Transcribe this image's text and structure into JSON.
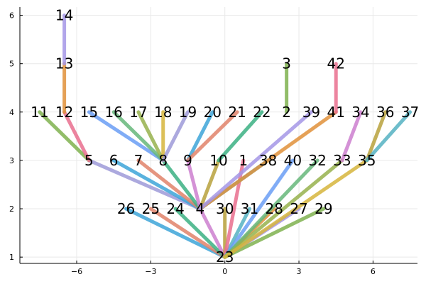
{
  "chart_data": {
    "type": "tree-graph",
    "xlim": [
      -8.3,
      7.8
    ],
    "ylim": [
      0.87,
      6.17
    ],
    "x_ticks": [
      -6,
      -3,
      0,
      3,
      6
    ],
    "x_tick_labels": [
      "−6",
      "−3",
      "0",
      "3",
      "6"
    ],
    "y_ticks": [
      1,
      2,
      3,
      4,
      5,
      6
    ],
    "y_tick_labels": [
      "1",
      "2",
      "3",
      "4",
      "5",
      "6"
    ],
    "grid": true,
    "legend": "none",
    "palette": [
      "#3da4d8",
      "#e0826a",
      "#3bb083",
      "#cc7fcf",
      "#b7a13c",
      "#55b2c2",
      "#e0913a",
      "#a496e6",
      "#7fb24f",
      "#e96f8e",
      "#6a9ef5",
      "#66b77a",
      "#97b24c",
      "#d6b53c",
      "#9e9ad8"
    ],
    "nodes": [
      {
        "id": "23",
        "x": 0.0,
        "y": 1
      },
      {
        "id": "26",
        "x": -4.0,
        "y": 2
      },
      {
        "id": "25",
        "x": -3.0,
        "y": 2
      },
      {
        "id": "24",
        "x": -2.0,
        "y": 2
      },
      {
        "id": "4",
        "x": -1.0,
        "y": 2
      },
      {
        "id": "30",
        "x": 0.0,
        "y": 2
      },
      {
        "id": "31",
        "x": 1.0,
        "y": 2
      },
      {
        "id": "28",
        "x": 2.0,
        "y": 2
      },
      {
        "id": "27",
        "x": 3.0,
        "y": 2
      },
      {
        "id": "29",
        "x": 4.0,
        "y": 2
      },
      {
        "id": "5",
        "x": -5.5,
        "y": 3
      },
      {
        "id": "6",
        "x": -4.5,
        "y": 3
      },
      {
        "id": "7",
        "x": -3.5,
        "y": 3
      },
      {
        "id": "8",
        "x": -2.5,
        "y": 3
      },
      {
        "id": "9",
        "x": -1.5,
        "y": 3
      },
      {
        "id": "10",
        "x": -0.25,
        "y": 3
      },
      {
        "id": "1",
        "x": 0.75,
        "y": 3
      },
      {
        "id": "38",
        "x": 1.75,
        "y": 3
      },
      {
        "id": "40",
        "x": 2.75,
        "y": 3
      },
      {
        "id": "32",
        "x": 3.75,
        "y": 3
      },
      {
        "id": "33",
        "x": 4.75,
        "y": 3
      },
      {
        "id": "35",
        "x": 5.75,
        "y": 3
      },
      {
        "id": "11",
        "x": -7.5,
        "y": 4
      },
      {
        "id": "12",
        "x": -6.5,
        "y": 4
      },
      {
        "id": "15",
        "x": -5.5,
        "y": 4
      },
      {
        "id": "16",
        "x": -4.5,
        "y": 4
      },
      {
        "id": "17",
        "x": -3.5,
        "y": 4
      },
      {
        "id": "18",
        "x": -2.5,
        "y": 4
      },
      {
        "id": "19",
        "x": -1.5,
        "y": 4
      },
      {
        "id": "20",
        "x": -0.5,
        "y": 4
      },
      {
        "id": "21",
        "x": 0.5,
        "y": 4
      },
      {
        "id": "22",
        "x": 1.5,
        "y": 4
      },
      {
        "id": "2",
        "x": 2.5,
        "y": 4
      },
      {
        "id": "39",
        "x": 3.5,
        "y": 4
      },
      {
        "id": "41",
        "x": 4.5,
        "y": 4
      },
      {
        "id": "34",
        "x": 5.5,
        "y": 4
      },
      {
        "id": "36",
        "x": 6.5,
        "y": 4
      },
      {
        "id": "37",
        "x": 7.5,
        "y": 4
      },
      {
        "id": "13",
        "x": -6.5,
        "y": 5
      },
      {
        "id": "3",
        "x": 2.5,
        "y": 5
      },
      {
        "id": "42",
        "x": 4.5,
        "y": 5
      },
      {
        "id": "14",
        "x": -6.5,
        "y": 6
      }
    ],
    "edges": [
      {
        "from": "23",
        "to": "26"
      },
      {
        "from": "23",
        "to": "25"
      },
      {
        "from": "23",
        "to": "24"
      },
      {
        "from": "23",
        "to": "4"
      },
      {
        "from": "23",
        "to": "30"
      },
      {
        "from": "23",
        "to": "31"
      },
      {
        "from": "23",
        "to": "28"
      },
      {
        "from": "23",
        "to": "27"
      },
      {
        "from": "23",
        "to": "29"
      },
      {
        "from": "23",
        "to": "1"
      },
      {
        "from": "23",
        "to": "40"
      },
      {
        "from": "23",
        "to": "32"
      },
      {
        "from": "23",
        "to": "33"
      },
      {
        "from": "23",
        "to": "35"
      },
      {
        "from": "4",
        "to": "5"
      },
      {
        "from": "4",
        "to": "6"
      },
      {
        "from": "4",
        "to": "7"
      },
      {
        "from": "4",
        "to": "8"
      },
      {
        "from": "4",
        "to": "9"
      },
      {
        "from": "4",
        "to": "10"
      },
      {
        "from": "4",
        "to": "38"
      },
      {
        "from": "4",
        "to": "41"
      },
      {
        "from": "4",
        "to": "39"
      },
      {
        "from": "5",
        "to": "11"
      },
      {
        "from": "5",
        "to": "12"
      },
      {
        "from": "8",
        "to": "15"
      },
      {
        "from": "8",
        "to": "16"
      },
      {
        "from": "8",
        "to": "17"
      },
      {
        "from": "8",
        "to": "18"
      },
      {
        "from": "8",
        "to": "19"
      },
      {
        "from": "9",
        "to": "20"
      },
      {
        "from": "9",
        "to": "21"
      },
      {
        "from": "10",
        "to": "22"
      },
      {
        "from": "33",
        "to": "34"
      },
      {
        "from": "35",
        "to": "36"
      },
      {
        "from": "35",
        "to": "37"
      },
      {
        "from": "12",
        "to": "13"
      },
      {
        "from": "13",
        "to": "14"
      },
      {
        "from": "2",
        "to": "3"
      },
      {
        "from": "41",
        "to": "42"
      }
    ]
  }
}
